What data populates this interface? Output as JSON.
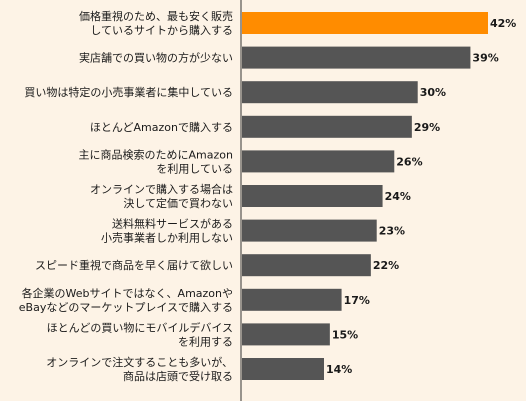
{
  "chart_data": {
    "type": "bar",
    "orientation": "horizontal",
    "categories": [
      [
        "価格重視のため、最も安く販売",
        "しているサイトから購入する"
      ],
      [
        "実店舗での買い物の方が少ない"
      ],
      [
        "買い物は特定の小売事業者に集中している"
      ],
      [
        "ほとんどAmazonで購入する"
      ],
      [
        "主に商品検索のためにAmazon",
        "を利用している"
      ],
      [
        "オンラインで購入する場合は",
        "決して定価で買わない"
      ],
      [
        "送料無料サービスがある",
        "小売事業者しか利用しない"
      ],
      [
        "スピード重視で商品を早く届けて欲しい"
      ],
      [
        "各企業のWebサイトではなく、Amazonや",
        "eBayなどのマーケットプレイスで購入する"
      ],
      [
        "ほとんどの買い物にモバイルデバイス",
        "を利用する"
      ],
      [
        "オンラインで注文することも多いが、",
        "商品は店頭で受け取る"
      ]
    ],
    "values": [
      42,
      39,
      30,
      29,
      26,
      24,
      23,
      22,
      17,
      15,
      14
    ],
    "value_labels": [
      "42%",
      "39%",
      "30%",
      "29%",
      "26%",
      "24%",
      "23%",
      "22%",
      "17%",
      "15%",
      "14%"
    ],
    "highlight_index": 0,
    "colors": {
      "highlight": "#ff8c00",
      "bar": "#555555",
      "background": "#fdf3e6",
      "axis": "#333333"
    },
    "title": "",
    "xlabel": "",
    "ylabel": "",
    "xlim": [
      0,
      45
    ],
    "grid": false,
    "legend": "none"
  }
}
